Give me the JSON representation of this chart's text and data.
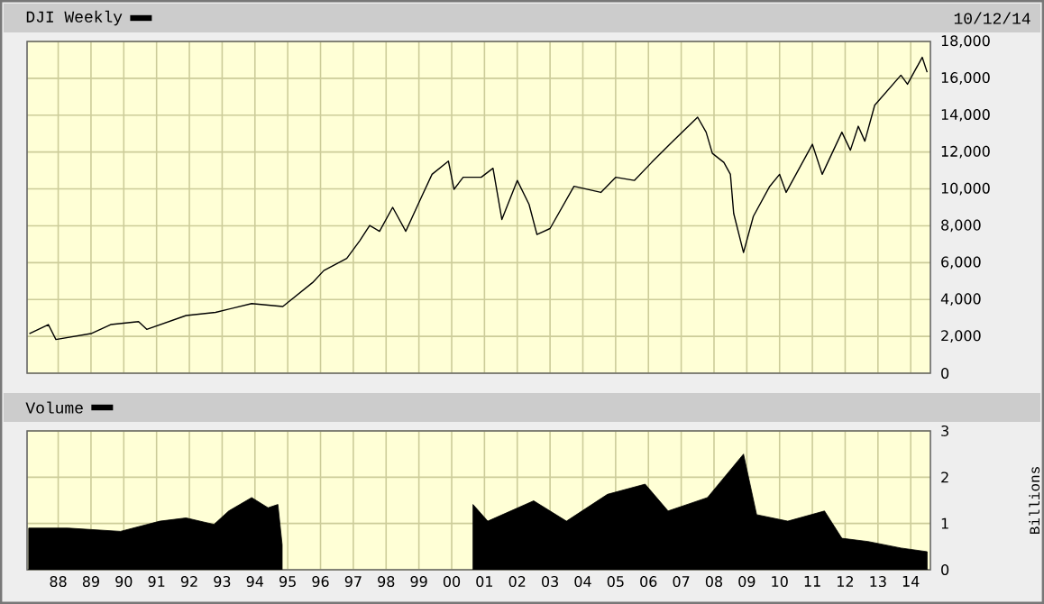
{
  "chart_data": [
    {
      "type": "line",
      "series": [
        {
          "name": "DJI Weekly",
          "color": "#000000",
          "x": [
            1987.12,
            1987.7,
            1987.93,
            1989.0,
            1989.6,
            1990.45,
            1990.7,
            1991.9,
            1992.8,
            1993.9,
            1994.85,
            1995.76,
            1996.1,
            1996.8,
            1997.2,
            1997.5,
            1997.8,
            1998.2,
            1998.6,
            1999.06,
            1999.4,
            1999.9,
            2000.07,
            2000.35,
            2000.9,
            2001.26,
            2001.53,
            2002.0,
            2002.36,
            2002.6,
            2003.0,
            2003.73,
            2004.55,
            2005.0,
            2005.57,
            2006.1,
            2006.75,
            2007.5,
            2007.76,
            2007.95,
            2008.3,
            2008.5,
            2008.6,
            2008.9,
            2009.2,
            2009.7,
            2010.0,
            2010.2,
            2011.0,
            2011.3,
            2011.9,
            2012.16,
            2012.4,
            2012.6,
            2012.9,
            2013.7,
            2013.9,
            2014.35,
            2014.5
          ],
          "values": [
            2150,
            2640,
            1830,
            2150,
            2640,
            2800,
            2380,
            3130,
            3300,
            3780,
            3620,
            4920,
            5570,
            6230,
            7200,
            8020,
            7700,
            9000,
            7700,
            9490,
            10790,
            11510,
            9980,
            10630,
            10630,
            11120,
            8340,
            10460,
            9160,
            7530,
            7850,
            10140,
            9810,
            10630,
            10460,
            11440,
            12590,
            13890,
            13080,
            11930,
            11440,
            10790,
            8670,
            6550,
            8510,
            10140,
            10790,
            9810,
            12420,
            10790,
            13080,
            12100,
            13400,
            12590,
            14540,
            16170,
            15680,
            17140,
            16330
          ]
        }
      ],
      "xlim": [
        1987.05,
        2014.6
      ],
      "xticks": [
        1988,
        1989,
        1990,
        1991,
        1992,
        1993,
        1994,
        1995,
        1996,
        1997,
        1998,
        1999,
        2000,
        2001,
        2002,
        2003,
        2004,
        2005,
        2006,
        2007,
        2008,
        2009,
        2010,
        2011,
        2012,
        2013,
        2014
      ],
      "ylim": [
        0,
        18000
      ],
      "yticks": [
        0,
        {
          "value": 2000,
          "label": "2,000"
        },
        {
          "value": 4000,
          "label": "4,000"
        },
        {
          "value": 6000,
          "label": "6,000"
        },
        {
          "value": 8000,
          "label": "8,000"
        },
        {
          "value": 10000,
          "label": "10,000"
        },
        {
          "value": 12000,
          "label": "12,000"
        },
        {
          "value": 14000,
          "label": "14,000"
        },
        {
          "value": 16000,
          "label": "16,000"
        },
        {
          "value": 18000,
          "label": "18,000"
        }
      ],
      "tick_labels": "y",
      "grid": true,
      "legend": "top left",
      "annotations": [
        "10/12/14"
      ]
    },
    {
      "type": "area",
      "series": [
        {
          "name": "Volume",
          "color": "#000000",
          "x": [
            1987.1,
            1988.3,
            1989.9,
            1991.1,
            1991.9,
            1992.75,
            1993.2,
            1993.9,
            1994.4,
            1994.7,
            1994.83,
            1995.0,
            2000.65,
            2001.1,
            2002.5,
            2003.5,
            2004.75,
            2005.9,
            2006.6,
            2007.8,
            2008.9,
            2009.3,
            2010.25,
            2011.37,
            2011.9,
            2012.7,
            2013.7,
            2014.5
          ],
          "values": [
            0.9,
            0.9,
            0.83,
            1.05,
            1.12,
            0.98,
            1.27,
            1.56,
            1.34,
            1.41,
            0.54,
            null,
            1.41,
            1.05,
            1.49,
            1.05,
            1.63,
            1.85,
            1.27,
            1.56,
            2.5,
            1.19,
            1.05,
            1.27,
            0.68,
            0.61,
            0.47,
            0.39
          ]
        }
      ],
      "xlim": [
        1987.05,
        2014.6
      ],
      "xticks": [
        {
          "value": 1988,
          "label": "88"
        },
        {
          "value": 1989,
          "label": "89"
        },
        {
          "value": 1990,
          "label": "90"
        },
        {
          "value": 1991,
          "label": "91"
        },
        {
          "value": 1992,
          "label": "92"
        },
        {
          "value": 1993,
          "label": "93"
        },
        {
          "value": 1994,
          "label": "94"
        },
        {
          "value": 1995,
          "label": "95"
        },
        {
          "value": 1996,
          "label": "96"
        },
        {
          "value": 1997,
          "label": "97"
        },
        {
          "value": 1998,
          "label": "98"
        },
        {
          "value": 1999,
          "label": "99"
        },
        {
          "value": 2000,
          "label": "00"
        },
        {
          "value": 2001,
          "label": "01"
        },
        {
          "value": 2002,
          "label": "02"
        },
        {
          "value": 2003,
          "label": "03"
        },
        {
          "value": 2004,
          "label": "04"
        },
        {
          "value": 2005,
          "label": "05"
        },
        {
          "value": 2006,
          "label": "06"
        },
        {
          "value": 2007,
          "label": "07"
        },
        {
          "value": 2008,
          "label": "08"
        },
        {
          "value": 2009,
          "label": "09"
        },
        {
          "value": 2010,
          "label": "10"
        },
        {
          "value": 2011,
          "label": "11"
        },
        {
          "value": 2012,
          "label": "12"
        },
        {
          "value": 2013,
          "label": "13"
        },
        {
          "value": 2014,
          "label": "14"
        }
      ],
      "ylim": [
        0,
        3
      ],
      "yticks": [
        0,
        1,
        2,
        3
      ],
      "ylabel": "Billions",
      "grid": true,
      "legend": "top left"
    }
  ]
}
